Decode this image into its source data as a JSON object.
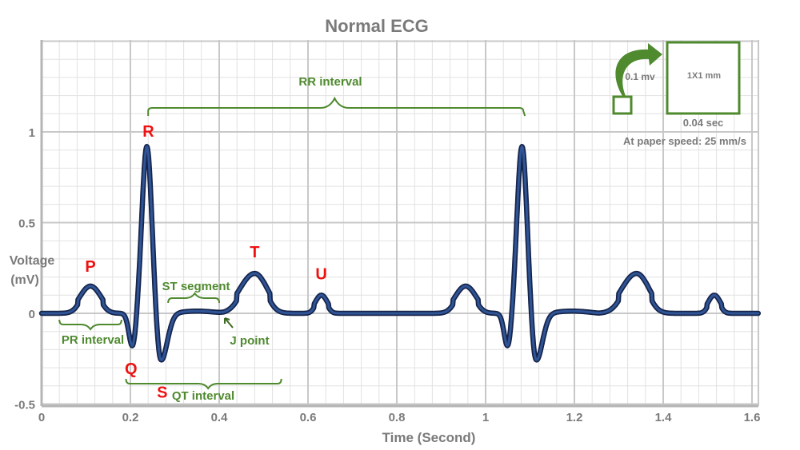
{
  "chart_data": {
    "type": "line",
    "title": "Normal ECG",
    "xlabel": "Time (Second)",
    "ylabel_line1": "Voltage",
    "ylabel_line2": "(mV)",
    "xlim": [
      0,
      1.6
    ],
    "ylim": [
      -0.5,
      1.5
    ],
    "xticks": [
      {
        "v": 0,
        "label": "0"
      },
      {
        "v": 0.2,
        "label": "0.2"
      },
      {
        "v": 0.4,
        "label": "0.4"
      },
      {
        "v": 0.6,
        "label": "0.6"
      },
      {
        "v": 0.8,
        "label": "0.8"
      },
      {
        "v": 1.0,
        "label": "1"
      },
      {
        "v": 1.2,
        "label": "1.2"
      },
      {
        "v": 1.4,
        "label": "1.4"
      },
      {
        "v": 1.6,
        "label": "1.6"
      }
    ],
    "yticks": [
      {
        "v": -0.5,
        "label": "-0.5"
      },
      {
        "v": 0,
        "label": "0"
      },
      {
        "v": 0.5,
        "label": "0.5"
      },
      {
        "v": 1,
        "label": "1"
      }
    ],
    "grid": true,
    "major_grid": {
      "x_step_s": 0.2,
      "y_step_mv": 0.5
    },
    "minor_grid": {
      "x_step_s": 0.04,
      "y_step_mv": 0.1
    },
    "waves": [
      {
        "label": "P",
        "t": 0.11,
        "mv": 0.15
      },
      {
        "label": "Q",
        "t": 0.205,
        "mv": -0.19
      },
      {
        "label": "R",
        "t": 0.237,
        "mv": 0.92
      },
      {
        "label": "S",
        "t": 0.268,
        "mv": -0.27
      },
      {
        "label": "T",
        "t": 0.48,
        "mv": 0.22
      },
      {
        "label": "U",
        "t": 0.63,
        "mv": 0.1
      },
      {
        "label": "",
        "t": 0.955,
        "mv": 0.15
      },
      {
        "label": "",
        "t": 1.05,
        "mv": -0.19
      },
      {
        "label": "",
        "t": 1.082,
        "mv": 0.92
      },
      {
        "label": "",
        "t": 1.113,
        "mv": -0.27
      },
      {
        "label": "",
        "t": 1.34,
        "mv": 0.22
      },
      {
        "label": "",
        "t": 1.515,
        "mv": 0.1
      }
    ],
    "intervals": [
      {
        "label": "RR interval",
        "start": 0.24,
        "end": 1.085
      },
      {
        "label": "PR interval",
        "start": 0.04,
        "end": 0.18
      },
      {
        "label": "ST segment",
        "start": 0.285,
        "end": 0.4
      },
      {
        "label": "QT interval",
        "start": 0.19,
        "end": 0.54
      }
    ],
    "annotations": {
      "j_point": {
        "label": "J point",
        "t": 0.4,
        "mv": 0
      }
    },
    "colors": {
      "trace": "#1f3a6e",
      "labels": "#ee1111",
      "annotations": "#4f8a2f",
      "text": "#7a7a7a"
    }
  },
  "scale_legend": {
    "small_box": "0.1 mv",
    "large_box": "1X1 mm",
    "time": "0.04 sec",
    "speed": "At paper speed: 25 mm/s"
  }
}
